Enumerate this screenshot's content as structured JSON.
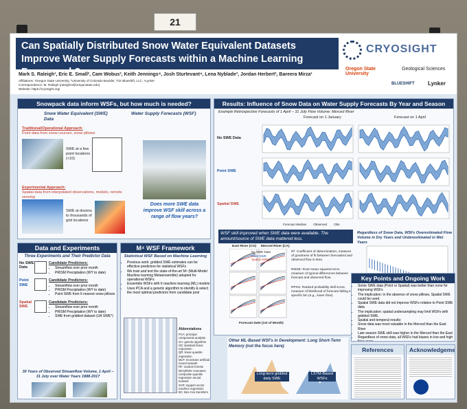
{
  "board_number": "21",
  "header": {
    "title": "Can Spatially Distributed Snow Water Equivalent Datasets Improve Water Supply Forecasts within a Machine Learning Framework?",
    "authors": "Mark S. Raleigh¹, Eric E. Small², Cam Wobus³, Keith Jennings⁴, Josh Sturtevant⁴, Lena Nyblade³, Jordan Herbert², Bareera Mirza¹",
    "affiliations": "Affiliations: ¹Oregon State University, ²University of Colorado Boulder, ³CK Blueshift, LLC, ⁴Lynker",
    "correspondence": "Correspondence: M. Raleigh (raleighm@oregonstate.edu)",
    "website": "Website: https://cryosight.org/",
    "logos": [
      "CRYOSIGHT",
      "Oregon State University",
      "Geological Sciences",
      "BLUESHIFT",
      "Lynker"
    ]
  },
  "snowpack": {
    "title": "Snowpack data inform WSFs, but how much is needed?",
    "swe_label": "Snow Water Equivalent (SWE) Data",
    "wsf_label": "Water Supply Forecasts (WSF)",
    "traditional": "Traditional/Operational Approach:",
    "traditional_text": "Point data from snow courses, snow pillows",
    "point_note": "SWE at a few point locations (<10)",
    "experimental": "Experimental Approach:",
    "experimental_text": "Spatial data from interpolated observations, models, remote sensing",
    "spatial_note": "SWE at dozens to thousands of grid locations",
    "callout": "Does more SWE data improve WSF skill across a range of flow years?"
  },
  "experiments": {
    "title": "Data and Experiments",
    "subtitle": "Three Experiments and Their Predictor Data",
    "items": [
      {
        "name": "No SWE Data",
        "heading": "Candidate Predictors:",
        "predictors": [
          "Streamflow over prior month",
          "PRISM Precipitation (WY to date)"
        ]
      },
      {
        "name": "Point SWE",
        "heading": "Candidate Predictors:",
        "predictors": [
          "Streamflow over prior month",
          "PRISM Precipitation (WY to date)",
          "Point SWE from 6 nearest snow pillows"
        ]
      },
      {
        "name": "Spatial SWE",
        "heading": "Candidate Predictors:",
        "predictors": [
          "Streamflow over prior month",
          "PRISM Precipitation (WY to date)",
          "SWE from gridded dataset (UA SWE*)"
        ]
      }
    ],
    "footer": "30 Years of Observed Streamflow Volume, 1 April – 31 July over Water Years 1988-2017"
  },
  "framework": {
    "title": "M⁴ WSF Framework",
    "subtitle": "Statistical WSF Based on Machine Learning",
    "bullets": [
      "Previous work: gridded SWE estimates can be effective predictors for statistical WSFs",
      "We train and test the state-of-the-art M⁴ (Multi-Model Machine learning Metaensemble) adopted for operational WSFs",
      "Ensemble WSFs with 6 machine learning (ML) models",
      "Uses PCA and a genetic algorithm to identify & select the most optimal predictors from candidate pool"
    ],
    "abbrev_title": "Abbreviations",
    "abbrev": [
      "PCA: principal components analysis",
      "GA: genetic algorithm",
      "SD: standard linear regression",
      "QR: linear quantile regression",
      "MLP: monotone artificial neural network",
      "RF: random forests",
      "MCQRNN: monotone composite quantile regression neural network",
      "SVR: support vector machine regression",
      "BC: Box-Cox transform"
    ]
  },
  "results": {
    "title": "Results: Influence of Snow Data on Water Supply Forecasts By Year and Season",
    "subtitle": "Example Retrospective Forecasts of 1 April – 31 July Flow Volume: Merced River",
    "panels": [
      "Forecast on 1 January",
      "Forecast on 1 April"
    ],
    "rows": [
      "No SWE Data",
      "Point SWE",
      "Spatial SWE"
    ],
    "legend": [
      "Forecast Median",
      "Observed",
      "Obs"
    ],
    "bars_title": "Regardless of Snow Data, WSFs Overestimated Flow Volume in Dry Years and Underestimated in Wet Years",
    "bars_xlabel": "Observed Apr-Jul Flow Volume (MCM)",
    "bars_notes": [
      "Lower flow (dry years)",
      "Higher flow (wet years)"
    ]
  },
  "skill": {
    "headline": "WSF skill improved when SWE data were available. The amount/source of SWE data mattered less.",
    "legend": [
      "No SWE Data",
      "Point SWE",
      "Spatial SWE"
    ],
    "metrics": [
      "R²: Coefficient of determination, measure of goodness of fit between forecasted and observed flow in time.",
      "RMSE: Root mean squared error, measure of typical differences between forecast and observed flow.",
      "RPSS: Ranked probability skill score, measure of likelihood of forecast falling in specific bin (e.g., lower flow)."
    ],
    "xlabel": "Forecast Date (1st of Month)",
    "basins": [
      "East River (CO)",
      "Merced River (CA)"
    ]
  },
  "other_ml": {
    "title": "Other ML-Based WSFs in Development: Long Short-Term Memory (not the focus here)",
    "labels": [
      "Long-term gridded daily SWE",
      "LSTM-Based WSFs"
    ]
  },
  "key_points": {
    "title": "Key Points and Ongoing Work",
    "bullets": [
      "Some SWE data (Point or Spatial) was better than none for improving WSFs",
      "The implication: in the absence of snow pillows, Spatial SWE could be used.",
      "Spatial SWE data did not improve WSFs relative to Point SWE data",
      "The implication: spatial undersampling may limit WSFs with gridded SWE.",
      "Spatial and temporal results:",
      "Snow data was most valuable in the Merced than the East River",
      "Late season SWE skill was higher in the Merced than the East",
      "Regardless of snow data, all WSFs had biases in low and high flow years",
      "Ongoing: more basins, years/dates, SWE datasets, other frameworks (ML)"
    ]
  },
  "references": {
    "title": "References"
  },
  "acknowledgements": {
    "title": "Acknowledgements"
  }
}
